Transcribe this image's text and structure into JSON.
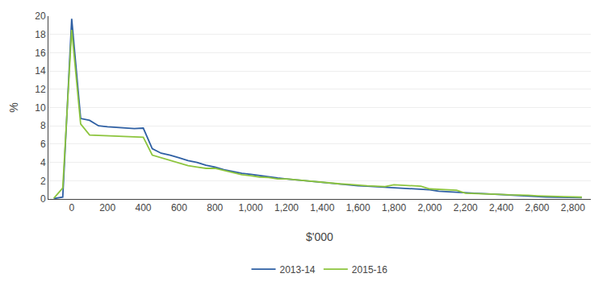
{
  "chart_data": {
    "type": "line",
    "xlabel": "$'000",
    "ylabel": "%",
    "x": [
      -100,
      -50,
      0,
      50,
      100,
      150,
      200,
      250,
      300,
      350,
      400,
      450,
      500,
      550,
      600,
      650,
      700,
      750,
      800,
      850,
      900,
      950,
      1000,
      1050,
      1100,
      1150,
      1200,
      1250,
      1300,
      1350,
      1400,
      1450,
      1500,
      1550,
      1600,
      1650,
      1700,
      1750,
      1800,
      1850,
      1900,
      1950,
      2000,
      2050,
      2100,
      2150,
      2200,
      2250,
      2300,
      2350,
      2400,
      2450,
      2500,
      2550,
      2600,
      2650,
      2700,
      2750,
      2800,
      2850
    ],
    "series": [
      {
        "name": "2013-14",
        "color": "#2E5FA3",
        "values": [
          0.05,
          0.2,
          19.7,
          8.8,
          8.6,
          8.0,
          7.9,
          7.85,
          7.8,
          7.7,
          7.75,
          5.5,
          5.0,
          4.8,
          4.5,
          4.2,
          4.0,
          3.7,
          3.5,
          3.2,
          3.0,
          2.8,
          2.7,
          2.55,
          2.4,
          2.3,
          2.2,
          2.1,
          2.05,
          1.9,
          1.8,
          1.7,
          1.6,
          1.55,
          1.45,
          1.4,
          1.35,
          1.3,
          1.2,
          1.15,
          1.1,
          1.05,
          1.0,
          0.85,
          0.78,
          0.72,
          0.68,
          0.62,
          0.58,
          0.52,
          0.48,
          0.43,
          0.35,
          0.3,
          0.25,
          0.22,
          0.2,
          0.18,
          0.16,
          0.15
        ]
      },
      {
        "name": "2015-16",
        "color": "#8DC53E",
        "values": [
          0.08,
          1.2,
          18.5,
          8.2,
          7.0,
          6.95,
          6.9,
          6.88,
          6.85,
          6.8,
          6.75,
          4.8,
          4.5,
          4.2,
          3.9,
          3.65,
          3.5,
          3.35,
          3.35,
          3.1,
          2.85,
          2.65,
          2.55,
          2.4,
          2.35,
          2.2,
          2.2,
          2.1,
          2.0,
          1.95,
          1.85,
          1.75,
          1.65,
          1.6,
          1.5,
          1.45,
          1.4,
          1.35,
          1.55,
          1.5,
          1.45,
          1.4,
          1.1,
          1.05,
          1.0,
          0.95,
          0.62,
          0.6,
          0.55,
          0.5,
          0.5,
          0.45,
          0.45,
          0.4,
          0.35,
          0.3,
          0.27,
          0.25,
          0.23,
          0.2
        ]
      }
    ],
    "xlim": [
      -130,
      2900
    ],
    "xticks": [
      0,
      200,
      400,
      600,
      800,
      {
        "value": 1000,
        "label": "1,000"
      },
      {
        "value": 1200,
        "label": "1,200"
      },
      {
        "value": 1400,
        "label": "1,400"
      },
      {
        "value": 1600,
        "label": "1,600"
      },
      {
        "value": 1800,
        "label": "1,800"
      },
      {
        "value": 2000,
        "label": "2,000"
      },
      {
        "value": 2200,
        "label": "2,200"
      },
      {
        "value": 2400,
        "label": "2,400"
      },
      {
        "value": 2600,
        "label": "2,600"
      },
      {
        "value": 2800,
        "label": "2,800"
      }
    ],
    "ylim": [
      0,
      20
    ],
    "yticks": [
      0,
      2,
      4,
      6,
      8,
      10,
      12,
      14,
      16,
      18,
      20
    ],
    "grid": "y",
    "legend": "bottom"
  }
}
